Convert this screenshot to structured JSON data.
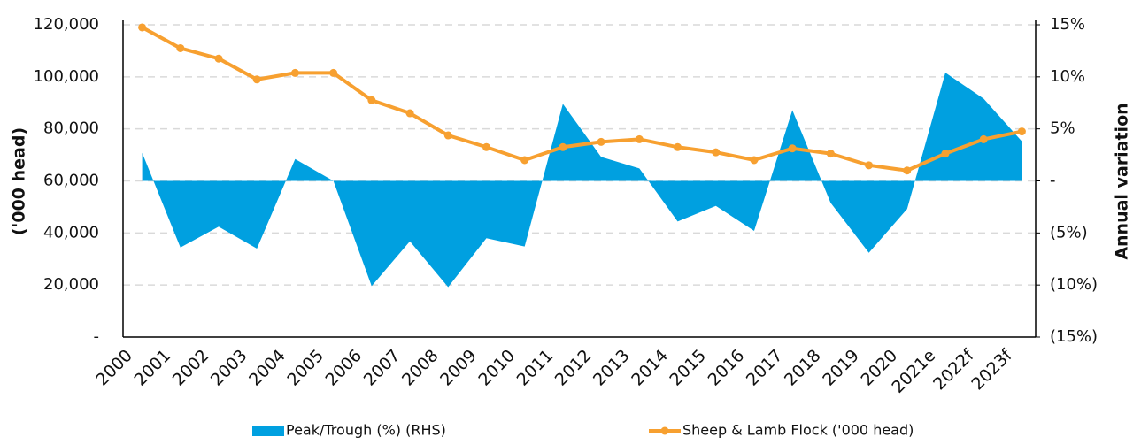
{
  "chart_data": {
    "type": "line-area",
    "categories": [
      "2000",
      "2001",
      "2002",
      "2003",
      "2004",
      "2005",
      "2006",
      "2007",
      "2008",
      "2009",
      "2010",
      "2011",
      "2012",
      "2013",
      "2014",
      "2015",
      "2016",
      "2017",
      "2018",
      "2019",
      "2020",
      "2021e",
      "2022f",
      "2023f"
    ],
    "y_label": "('000 head)",
    "y2_label": "Annual variation",
    "ylim": [
      0,
      120000
    ],
    "yticks": [
      {
        "value": 0,
        "label": "-"
      },
      {
        "value": 20000,
        "label": "20,000"
      },
      {
        "value": 40000,
        "label": "40,000"
      },
      {
        "value": 60000,
        "label": "60,000"
      },
      {
        "value": 80000,
        "label": "80,000"
      },
      {
        "value": 100000,
        "label": "100,000"
      },
      {
        "value": 120000,
        "label": "120,000"
      }
    ],
    "y2lim": [
      -15,
      15
    ],
    "y2ticks": [
      {
        "value": -15,
        "label": "(15%)"
      },
      {
        "value": -10,
        "label": "(10%)"
      },
      {
        "value": -5,
        "label": "(5%)"
      },
      {
        "value": 0,
        "label": "-"
      },
      {
        "value": 5,
        "label": "5%"
      },
      {
        "value": 10,
        "label": "10%"
      },
      {
        "value": 15,
        "label": "15%"
      }
    ],
    "grid": true,
    "legend": "bottom",
    "series": [
      {
        "name": "Peak/Trough (%) (RHS)",
        "type": "area",
        "axis": "y2",
        "color": "#00a0e0",
        "values": [
          2.7,
          -6.4,
          -4.4,
          -6.5,
          2.1,
          0,
          -10.1,
          -5.8,
          -10.2,
          -5.5,
          -6.3,
          7.4,
          2.3,
          1.2,
          -3.9,
          -2.4,
          -4.8,
          6.8,
          -2.1,
          -6.9,
          -2.7,
          10.4,
          7.9,
          3.8
        ]
      },
      {
        "name": "Sheep & Lamb Flock ('000 head)",
        "type": "line",
        "axis": "y",
        "color": "#f7a030",
        "values": [
          119000,
          111000,
          107000,
          99000,
          101500,
          101500,
          91000,
          86000,
          77500,
          73000,
          68000,
          73000,
          75000,
          76000,
          73000,
          71000,
          68000,
          72500,
          70500,
          66000,
          64000,
          70500,
          76000,
          79000
        ]
      }
    ]
  }
}
